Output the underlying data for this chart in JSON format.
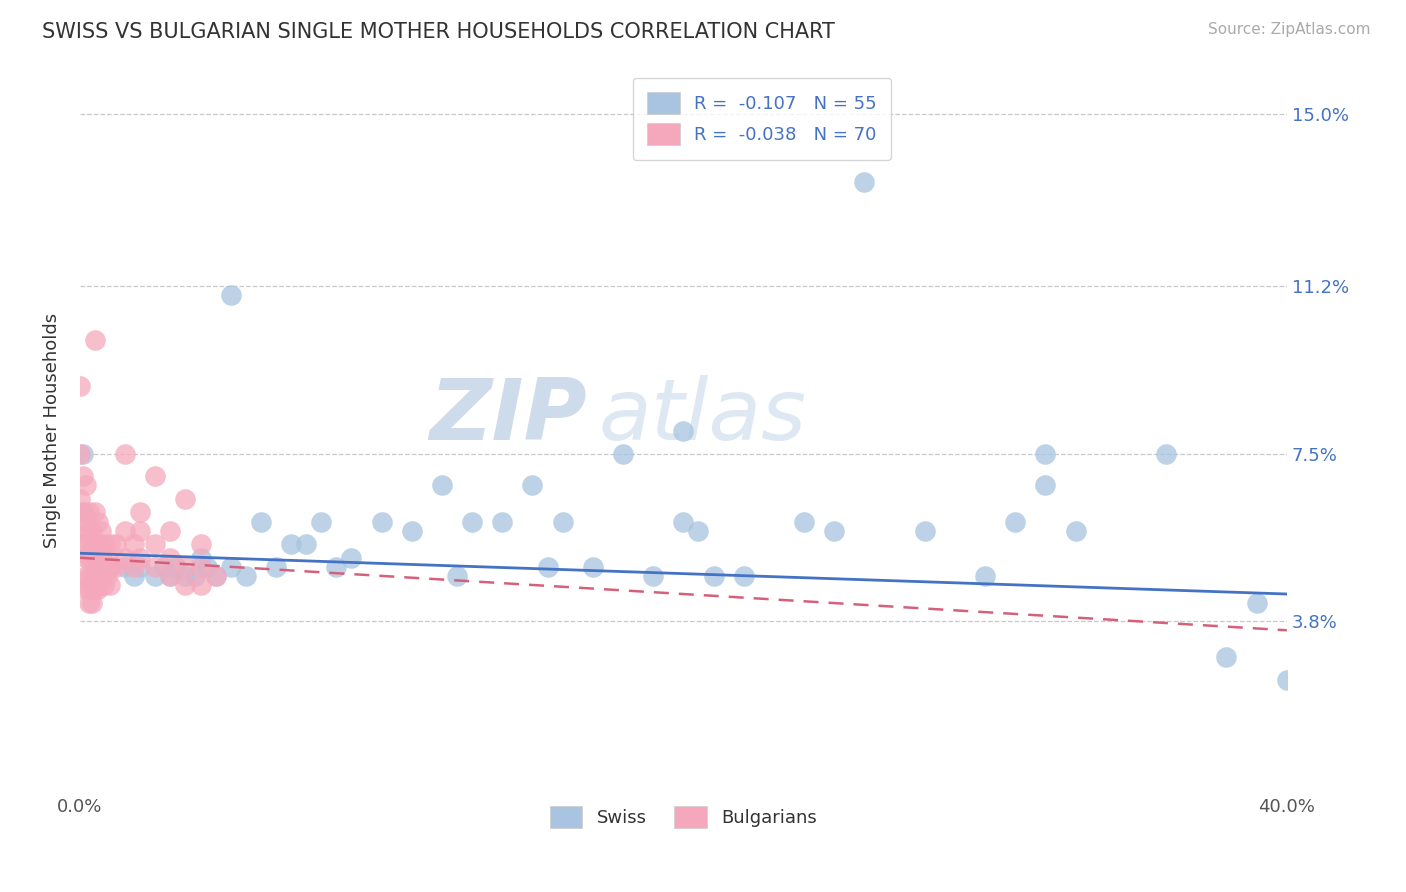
{
  "title": "SWISS VS BULGARIAN SINGLE MOTHER HOUSEHOLDS CORRELATION CHART",
  "source": "Source: ZipAtlas.com",
  "ylabel": "Single Mother Households",
  "xlim": [
    0.0,
    0.4
  ],
  "ylim": [
    0.0,
    0.16
  ],
  "xtick_positions": [
    0.0,
    0.04,
    0.08,
    0.12,
    0.16,
    0.2,
    0.24,
    0.28,
    0.32,
    0.36,
    0.4
  ],
  "xtick_labels": [
    "0.0%",
    "",
    "",
    "",
    "",
    "",
    "",
    "",
    "",
    "",
    "40.0%"
  ],
  "ytick_vals_right": [
    0.038,
    0.075,
    0.112,
    0.15
  ],
  "ytick_labels_right": [
    "3.8%",
    "7.5%",
    "11.2%",
    "15.0%"
  ],
  "r_swiss": -0.107,
  "n_swiss": 55,
  "r_bulgarian": -0.038,
  "n_bulgarian": 70,
  "swiss_color": "#a8c4e0",
  "bulgarian_color": "#f5a8bc",
  "swiss_line_color": "#4472c4",
  "bulgarian_line_color": "#d4607a",
  "swiss_scatter": [
    [
      0.001,
      0.062
    ],
    [
      0.001,
      0.075
    ],
    [
      0.01,
      0.05
    ],
    [
      0.015,
      0.05
    ],
    [
      0.018,
      0.048
    ],
    [
      0.02,
      0.05
    ],
    [
      0.025,
      0.048
    ],
    [
      0.028,
      0.05
    ],
    [
      0.03,
      0.048
    ],
    [
      0.032,
      0.05
    ],
    [
      0.035,
      0.048
    ],
    [
      0.038,
      0.048
    ],
    [
      0.04,
      0.052
    ],
    [
      0.042,
      0.05
    ],
    [
      0.045,
      0.048
    ],
    [
      0.05,
      0.05
    ],
    [
      0.055,
      0.048
    ],
    [
      0.06,
      0.06
    ],
    [
      0.065,
      0.05
    ],
    [
      0.07,
      0.055
    ],
    [
      0.075,
      0.055
    ],
    [
      0.08,
      0.06
    ],
    [
      0.085,
      0.05
    ],
    [
      0.09,
      0.052
    ],
    [
      0.1,
      0.06
    ],
    [
      0.11,
      0.058
    ],
    [
      0.12,
      0.068
    ],
    [
      0.125,
      0.048
    ],
    [
      0.13,
      0.06
    ],
    [
      0.14,
      0.06
    ],
    [
      0.15,
      0.068
    ],
    [
      0.155,
      0.05
    ],
    [
      0.16,
      0.06
    ],
    [
      0.17,
      0.05
    ],
    [
      0.18,
      0.075
    ],
    [
      0.19,
      0.048
    ],
    [
      0.2,
      0.06
    ],
    [
      0.205,
      0.058
    ],
    [
      0.21,
      0.048
    ],
    [
      0.22,
      0.048
    ],
    [
      0.24,
      0.06
    ],
    [
      0.25,
      0.058
    ],
    [
      0.26,
      0.135
    ],
    [
      0.28,
      0.058
    ],
    [
      0.3,
      0.048
    ],
    [
      0.31,
      0.06
    ],
    [
      0.32,
      0.075
    ],
    [
      0.33,
      0.058
    ],
    [
      0.36,
      0.075
    ],
    [
      0.38,
      0.03
    ],
    [
      0.39,
      0.042
    ],
    [
      0.4,
      0.025
    ],
    [
      0.05,
      0.11
    ],
    [
      0.2,
      0.08
    ],
    [
      0.32,
      0.068
    ]
  ],
  "bulgarian_scatter": [
    [
      0.0,
      0.09
    ],
    [
      0.0,
      0.075
    ],
    [
      0.0,
      0.065
    ],
    [
      0.0,
      0.058
    ],
    [
      0.001,
      0.07
    ],
    [
      0.001,
      0.062
    ],
    [
      0.001,
      0.055
    ],
    [
      0.002,
      0.068
    ],
    [
      0.002,
      0.06
    ],
    [
      0.002,
      0.055
    ],
    [
      0.002,
      0.052
    ],
    [
      0.002,
      0.048
    ],
    [
      0.002,
      0.045
    ],
    [
      0.003,
      0.062
    ],
    [
      0.003,
      0.058
    ],
    [
      0.003,
      0.052
    ],
    [
      0.003,
      0.048
    ],
    [
      0.003,
      0.045
    ],
    [
      0.003,
      0.042
    ],
    [
      0.004,
      0.058
    ],
    [
      0.004,
      0.055
    ],
    [
      0.004,
      0.052
    ],
    [
      0.004,
      0.048
    ],
    [
      0.004,
      0.045
    ],
    [
      0.004,
      0.042
    ],
    [
      0.005,
      0.062
    ],
    [
      0.005,
      0.055
    ],
    [
      0.005,
      0.05
    ],
    [
      0.005,
      0.048
    ],
    [
      0.005,
      0.045
    ],
    [
      0.006,
      0.06
    ],
    [
      0.006,
      0.055
    ],
    [
      0.006,
      0.05
    ],
    [
      0.006,
      0.048
    ],
    [
      0.006,
      0.045
    ],
    [
      0.007,
      0.058
    ],
    [
      0.007,
      0.052
    ],
    [
      0.007,
      0.048
    ],
    [
      0.008,
      0.055
    ],
    [
      0.008,
      0.05
    ],
    [
      0.008,
      0.046
    ],
    [
      0.009,
      0.052
    ],
    [
      0.009,
      0.048
    ],
    [
      0.01,
      0.055
    ],
    [
      0.01,
      0.05
    ],
    [
      0.01,
      0.046
    ],
    [
      0.012,
      0.055
    ],
    [
      0.012,
      0.05
    ],
    [
      0.015,
      0.058
    ],
    [
      0.015,
      0.052
    ],
    [
      0.018,
      0.055
    ],
    [
      0.018,
      0.05
    ],
    [
      0.02,
      0.058
    ],
    [
      0.02,
      0.052
    ],
    [
      0.025,
      0.055
    ],
    [
      0.025,
      0.05
    ],
    [
      0.03,
      0.052
    ],
    [
      0.03,
      0.048
    ],
    [
      0.035,
      0.05
    ],
    [
      0.035,
      0.046
    ],
    [
      0.04,
      0.05
    ],
    [
      0.04,
      0.046
    ],
    [
      0.045,
      0.048
    ],
    [
      0.005,
      0.1
    ],
    [
      0.015,
      0.075
    ],
    [
      0.025,
      0.07
    ],
    [
      0.035,
      0.065
    ],
    [
      0.02,
      0.062
    ],
    [
      0.03,
      0.058
    ],
    [
      0.04,
      0.055
    ]
  ],
  "watermark": "ZIPatlas",
  "background_color": "#ffffff",
  "grid_color": "#c8c8c8"
}
